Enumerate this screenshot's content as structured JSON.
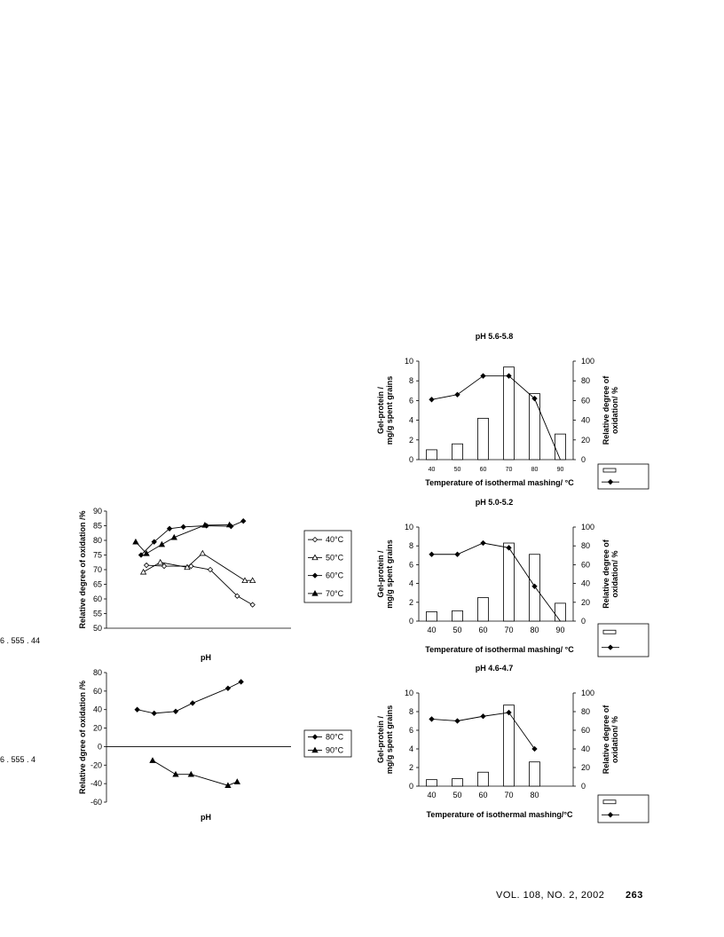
{
  "chart_data": [
    {
      "type": "line",
      "ylabel": "Relative degree of oxidation /%",
      "xlabel": "pH",
      "ylim": [
        50,
        90
      ],
      "yticks": [
        "50",
        "55",
        "60",
        "65",
        "70",
        "75",
        "80",
        "85",
        "90"
      ],
      "x_tick_text": "6       .    555   .     44",
      "xlim": [
        6.2,
        3.8
      ],
      "series": [
        {
          "name": "40°C",
          "marker": "diamond-open",
          "x": [
            5.68,
            5.45,
            5.1,
            4.85,
            4.5,
            4.3
          ],
          "y": [
            71.5,
            71.2,
            71.2,
            70.0,
            61.0,
            58.0
          ]
        },
        {
          "name": "50°C",
          "marker": "triangle-open",
          "x": [
            5.72,
            5.5,
            5.15,
            4.95,
            4.4,
            4.3
          ],
          "y": [
            69.2,
            72.5,
            70.8,
            75.6,
            66.3,
            66.3
          ]
        },
        {
          "name": "60°C",
          "marker": "diamond",
          "x": [
            5.75,
            5.58,
            5.38,
            5.2,
            4.9,
            4.58,
            4.42
          ],
          "y": [
            75.0,
            79.5,
            84.0,
            84.6,
            85.0,
            84.8,
            86.6
          ]
        },
        {
          "name": "70°C",
          "marker": "triangle",
          "x": [
            5.82,
            5.68,
            5.48,
            5.32,
            4.92,
            4.6
          ],
          "y": [
            79.5,
            75.5,
            78.6,
            81.0,
            85.2,
            85.3
          ]
        }
      ]
    },
    {
      "type": "line",
      "ylabel": "Relative dgree of oxidation /%",
      "xlabel": "pH",
      "ylim": [
        -60,
        80
      ],
      "yticks": [
        "-60",
        "-40",
        "-20",
        "0",
        "20",
        "40",
        "60",
        "80"
      ],
      "x_tick_text": "6       .    555   .     4",
      "xlim": [
        6.2,
        3.8
      ],
      "series": [
        {
          "name": "80°C",
          "marker": "diamond",
          "x": [
            5.8,
            5.58,
            5.3,
            5.08,
            4.62,
            4.45
          ],
          "y": [
            40,
            36,
            38,
            47,
            63,
            70
          ]
        },
        {
          "name": "90°C",
          "marker": "triangle",
          "x": [
            5.6,
            5.3,
            5.1,
            4.62,
            4.5
          ],
          "y": [
            -15,
            -30,
            -30,
            -42,
            -38
          ]
        }
      ]
    },
    {
      "type": "bar",
      "title": "pH 5.6-5.8",
      "xlabel": "Temperature of isothermal mashing/    °C",
      "ylabel": "Gel-protein / mg/g spent grains",
      "y2label": "Relative degree of oxidation/ %",
      "categories": [
        "40",
        "50",
        "60",
        "70",
        "80",
        "90"
      ],
      "bar_values": [
        1.0,
        1.6,
        4.2,
        9.4,
        6.7,
        2.6
      ],
      "line_values": [
        61,
        66,
        85,
        85,
        62,
        0
      ],
      "ylim": [
        0,
        10
      ],
      "y2lim": [
        0,
        100
      ],
      "yticks": [
        "0",
        "2",
        "4",
        "6",
        "8",
        "10"
      ],
      "y2ticks": [
        "0",
        "20",
        "40",
        "60",
        "80",
        "100"
      ]
    },
    {
      "type": "bar",
      "title": "pH 5.0-5.2",
      "xlabel": "Temperature of isothermal mashing/    °C",
      "ylabel": "Gel-protein / mg/g spent grains",
      "y2label": "Relative degree of oxidation/ %",
      "categories": [
        "40",
        "50",
        "60",
        "70",
        "80",
        "90"
      ],
      "bar_values": [
        1.0,
        1.1,
        2.5,
        8.3,
        7.1,
        1.9
      ],
      "line_values": [
        71,
        71,
        83,
        78,
        37,
        0
      ],
      "ylim": [
        0,
        10
      ],
      "y2lim": [
        0,
        100
      ],
      "yticks": [
        "0",
        "2",
        "4",
        "6",
        "8",
        "10"
      ],
      "y2ticks": [
        "0",
        "20",
        "40",
        "60",
        "80",
        "100"
      ]
    },
    {
      "type": "bar",
      "title": "pH 4.6-4.7",
      "xlabel": "Temperature of isothermal mashing/°C",
      "ylabel": "Gel-protein / mg/g spent grains",
      "y2label": "Relative degree of oxidation/ %",
      "categories": [
        "40",
        "50",
        "60",
        "70",
        "80"
      ],
      "bar_values": [
        0.7,
        0.8,
        1.5,
        8.7,
        2.6
      ],
      "line_values": [
        72,
        70,
        75,
        79,
        40
      ],
      "ylim": [
        0,
        10
      ],
      "y2lim": [
        0,
        100
      ],
      "yticks": [
        "0",
        "2",
        "4",
        "6",
        "8",
        "10"
      ],
      "y2ticks": [
        "0",
        "20",
        "40",
        "60",
        "80",
        "100"
      ]
    }
  ],
  "footer": {
    "journal": "VOL. 108, NO. 2,  2002",
    "page": "263"
  }
}
